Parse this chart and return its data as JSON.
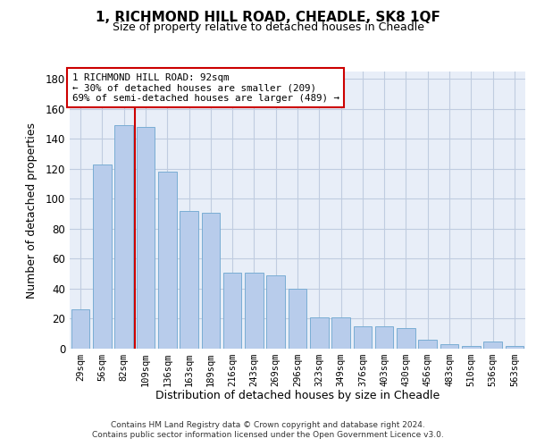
{
  "title": "1, RICHMOND HILL ROAD, CHEADLE, SK8 1QF",
  "subtitle": "Size of property relative to detached houses in Cheadle",
  "xlabel": "Distribution of detached houses by size in Cheadle",
  "ylabel": "Number of detached properties",
  "categories": [
    "29sqm",
    "56sqm",
    "82sqm",
    "109sqm",
    "136sqm",
    "163sqm",
    "189sqm",
    "216sqm",
    "243sqm",
    "269sqm",
    "296sqm",
    "323sqm",
    "349sqm",
    "376sqm",
    "403sqm",
    "430sqm",
    "456sqm",
    "483sqm",
    "510sqm",
    "536sqm",
    "563sqm"
  ],
  "values": [
    26,
    123,
    149,
    148,
    118,
    92,
    91,
    51,
    51,
    49,
    40,
    21,
    21,
    15,
    15,
    14,
    6,
    3,
    2,
    5,
    2
  ],
  "bar_color": "#b8cceb",
  "bar_edge_color": "#7aadd4",
  "vline_color": "#cc0000",
  "vline_x": 2.5,
  "annotation_text": "1 RICHMOND HILL ROAD: 92sqm\n← 30% of detached houses are smaller (209)\n69% of semi-detached houses are larger (489) →",
  "ylim": [
    0,
    185
  ],
  "yticks": [
    0,
    20,
    40,
    60,
    80,
    100,
    120,
    140,
    160,
    180
  ],
  "footer_line1": "Contains HM Land Registry data © Crown copyright and database right 2024.",
  "footer_line2": "Contains public sector information licensed under the Open Government Licence v3.0.",
  "background_color": "#e8eef8",
  "grid_color": "#c0cce0"
}
